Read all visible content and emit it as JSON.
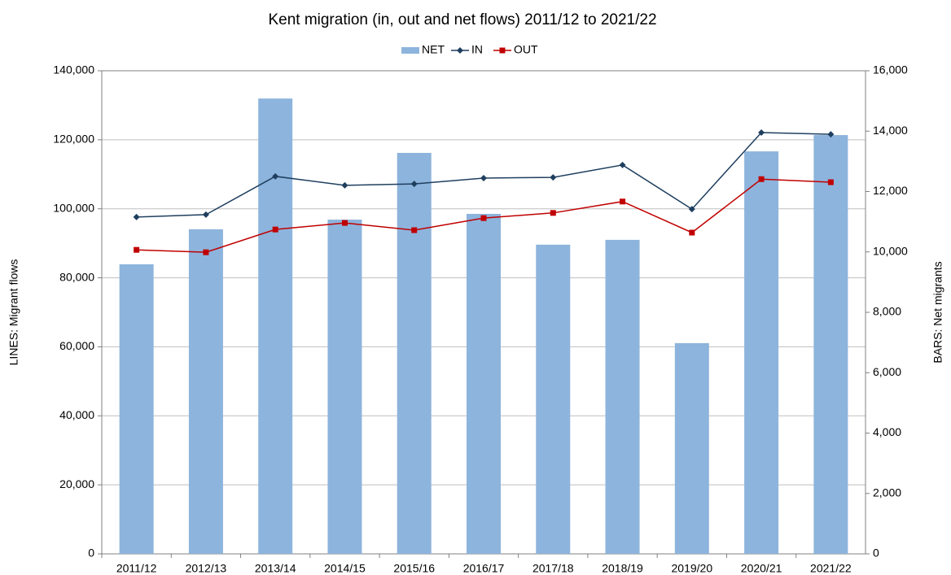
{
  "chart_data": {
    "type": "combo",
    "title": "Kent migration (in, out and net flows) 2011/12 to 2021/22",
    "y_label": "LINES: Migrant flows",
    "y2_label": "BARS: Net migrants",
    "categories": [
      "2011/12",
      "2012/13",
      "2013/14",
      "2014/15",
      "2015/16",
      "2016/17",
      "2017/18",
      "2018/19",
      "2019/20",
      "2020/21",
      "2021/22"
    ],
    "series": [
      {
        "name": "NET",
        "type": "bar",
        "axis": "y2",
        "color": "#8db4dc",
        "values": [
          9590,
          10750,
          15080,
          11070,
          13280,
          11260,
          10240,
          10400,
          6980,
          13330,
          13870
        ]
      },
      {
        "name": "IN",
        "type": "line",
        "marker": "diamond",
        "color": "#1f3f5f",
        "values": [
          97600,
          98300,
          109400,
          106800,
          107200,
          108900,
          109100,
          112700,
          99900,
          122100,
          121600
        ]
      },
      {
        "name": "OUT",
        "type": "line",
        "marker": "square",
        "color": "#c00000",
        "values": [
          88100,
          87400,
          94000,
          95900,
          93800,
          97300,
          98800,
          102100,
          93100,
          108600,
          107700
        ]
      }
    ],
    "ylim": [
      0,
      140000
    ],
    "yticks": [
      0,
      {
        "value": 20000,
        "label": "20,000"
      },
      {
        "value": 40000,
        "label": "40,000"
      },
      {
        "value": 60000,
        "label": "60,000"
      },
      {
        "value": 80000,
        "label": "80,000"
      },
      {
        "value": 100000,
        "label": "100,000"
      },
      {
        "value": 120000,
        "label": "120,000"
      },
      {
        "value": 140000,
        "label": "140,000"
      }
    ],
    "y2lim": [
      0,
      16000
    ],
    "y2ticks": [
      0,
      {
        "value": 2000,
        "label": "2,000"
      },
      {
        "value": 4000,
        "label": "4,000"
      },
      {
        "value": 6000,
        "label": "6,000"
      },
      {
        "value": 8000,
        "label": "8,000"
      },
      {
        "value": 10000,
        "label": "10,000"
      },
      {
        "value": 12000,
        "label": "12,000"
      },
      {
        "value": 14000,
        "label": "14,000"
      },
      {
        "value": 16000,
        "label": "16,000"
      }
    ],
    "grid": true,
    "legend": "top"
  }
}
